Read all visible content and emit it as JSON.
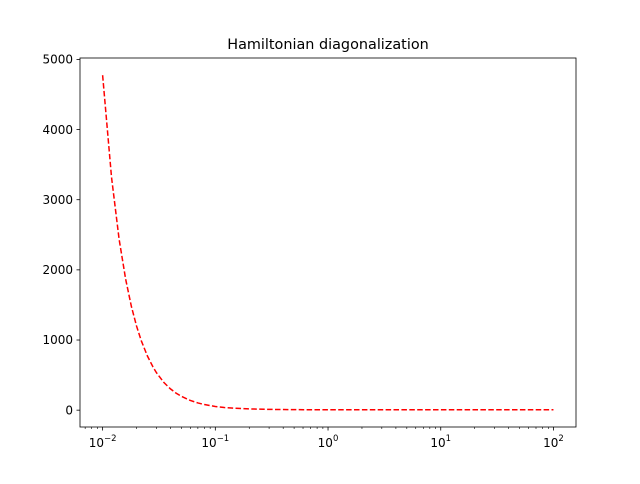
{
  "chart_data": {
    "type": "line",
    "title": "Hamiltonian diagonalization",
    "xlabel": "",
    "ylabel": "",
    "xscale": "log",
    "xlim": [
      0.0063,
      158.5
    ],
    "ylim": [
      -240,
      5020
    ],
    "grid": false,
    "legend": "none",
    "x_ticks": [
      {
        "value": 0.01,
        "base": "10",
        "exp": "−2"
      },
      {
        "value": 0.1,
        "base": "10",
        "exp": "−1"
      },
      {
        "value": 1,
        "base": "10",
        "exp": "0"
      },
      {
        "value": 10,
        "base": "10",
        "exp": "1"
      },
      {
        "value": 100,
        "base": "10",
        "exp": "2"
      }
    ],
    "y_ticks": [
      {
        "value": 0,
        "label": "0"
      },
      {
        "value": 1000,
        "label": "1000"
      },
      {
        "value": 2000,
        "label": "2000"
      },
      {
        "value": 3000,
        "label": "3000"
      },
      {
        "value": 4000,
        "label": "4000"
      },
      {
        "value": 5000,
        "label": "5000"
      }
    ],
    "series": [
      {
        "color": "#ff0000",
        "line_style": "dashed",
        "x": [
          0.01,
          0.012,
          0.014,
          0.016,
          0.018,
          0.02,
          0.022,
          0.025,
          0.028,
          0.03,
          0.035,
          0.04,
          0.045,
          0.05,
          0.06,
          0.07,
          0.08,
          0.1,
          0.12,
          0.15,
          0.2,
          0.3,
          0.5,
          0.7,
          1,
          2,
          5,
          10,
          20,
          50,
          100
        ],
        "y": [
          4775,
          3318,
          2439,
          1869,
          1478,
          1199,
          992,
          770,
          615,
          535,
          394,
          303,
          241,
          197,
          138,
          103,
          80,
          53,
          38,
          27,
          18,
          11,
          7.3,
          6.3,
          5.8,
          5.2,
          5.0,
          5.0,
          5.0,
          5.0,
          5.0
        ]
      }
    ]
  }
}
